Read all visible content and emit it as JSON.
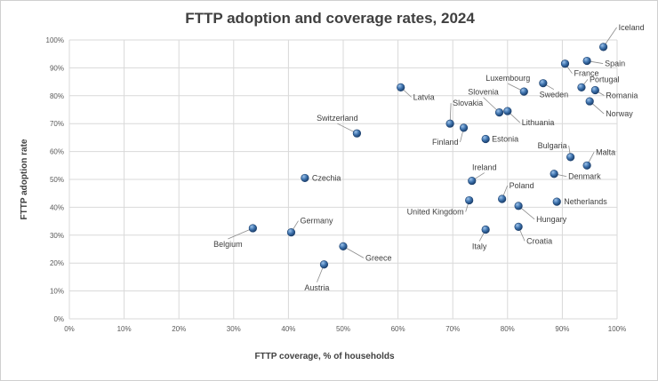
{
  "chart_data": {
    "type": "scatter",
    "title": "FTTP adoption and coverage rates, 2024",
    "xlabel": "FTTP coverage, % of households",
    "ylabel": "FTTP adoption rate",
    "xlim": [
      0,
      100
    ],
    "ylim": [
      0,
      100
    ],
    "xticks": [
      "0%",
      "10%",
      "20%",
      "30%",
      "40%",
      "50%",
      "60%",
      "70%",
      "80%",
      "90%",
      "100%"
    ],
    "yticks": [
      "0%",
      "10%",
      "20%",
      "30%",
      "40%",
      "50%",
      "60%",
      "70%",
      "80%",
      "90%",
      "100%"
    ],
    "grid": true,
    "colors": {
      "marker": "#2e5f96",
      "marker_light": "#9ec3ea",
      "gridline": "#d9d9d9",
      "text": "#404040"
    },
    "points": [
      {
        "name": "Iceland",
        "x": 97.5,
        "y": 97.5
      },
      {
        "name": "Spain",
        "x": 94.5,
        "y": 92.5
      },
      {
        "name": "France",
        "x": 90.5,
        "y": 91.5
      },
      {
        "name": "Portugal",
        "x": 93.5,
        "y": 83.0
      },
      {
        "name": "Romania",
        "x": 96.0,
        "y": 82.0
      },
      {
        "name": "Luxembourg",
        "x": 83.0,
        "y": 81.5
      },
      {
        "name": "Sweden",
        "x": 86.5,
        "y": 84.5
      },
      {
        "name": "Norway",
        "x": 95.0,
        "y": 78.0
      },
      {
        "name": "Latvia",
        "x": 60.5,
        "y": 83.0
      },
      {
        "name": "Slovenia",
        "x": 78.5,
        "y": 74.0
      },
      {
        "name": "Lithuania",
        "x": 80.0,
        "y": 74.5
      },
      {
        "name": "Slovakia",
        "x": 69.5,
        "y": 70.0
      },
      {
        "name": "Finland",
        "x": 72.0,
        "y": 68.5
      },
      {
        "name": "Estonia",
        "x": 76.0,
        "y": 64.5
      },
      {
        "name": "Switzerland",
        "x": 52.5,
        "y": 66.5
      },
      {
        "name": "Bulgaria",
        "x": 91.5,
        "y": 58.0
      },
      {
        "name": "Malta",
        "x": 94.5,
        "y": 55.0
      },
      {
        "name": "Denmark",
        "x": 88.5,
        "y": 52.0
      },
      {
        "name": "Ireland",
        "x": 73.5,
        "y": 49.5
      },
      {
        "name": "Czechia",
        "x": 43.0,
        "y": 50.5
      },
      {
        "name": "Netherlands",
        "x": 89.0,
        "y": 42.0
      },
      {
        "name": "Poland",
        "x": 79.0,
        "y": 43.0
      },
      {
        "name": "United Kingdom",
        "x": 73.0,
        "y": 42.5
      },
      {
        "name": "Hungary",
        "x": 82.0,
        "y": 40.5
      },
      {
        "name": "Croatia",
        "x": 82.0,
        "y": 33.0
      },
      {
        "name": "Italy",
        "x": 76.0,
        "y": 32.0
      },
      {
        "name": "Belgium",
        "x": 33.5,
        "y": 32.5
      },
      {
        "name": "Germany",
        "x": 40.5,
        "y": 31.0
      },
      {
        "name": "Greece",
        "x": 50.0,
        "y": 26.0
      },
      {
        "name": "Austria",
        "x": 46.5,
        "y": 19.5
      }
    ]
  }
}
